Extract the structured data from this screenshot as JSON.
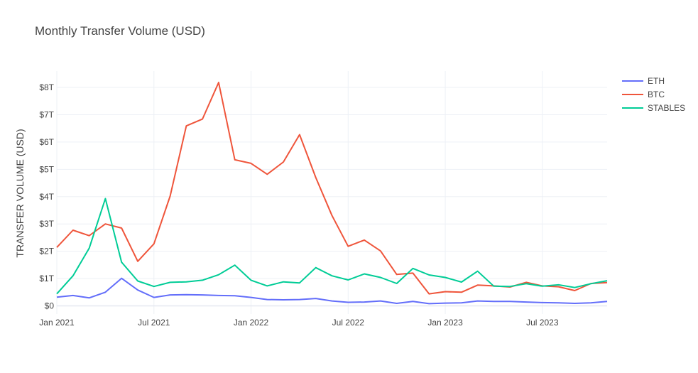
{
  "chart_data": {
    "type": "line",
    "title": "Monthly Transfer Volume (USD)",
    "xlabel": "",
    "ylabel": "TRANSFER VOLUME (USD)",
    "x": [
      "2021-01",
      "2021-02",
      "2021-03",
      "2021-04",
      "2021-05",
      "2021-06",
      "2021-07",
      "2021-08",
      "2021-09",
      "2021-10",
      "2021-11",
      "2021-12",
      "2022-01",
      "2022-02",
      "2022-03",
      "2022-04",
      "2022-05",
      "2022-06",
      "2022-07",
      "2022-08",
      "2022-09",
      "2022-10",
      "2022-11",
      "2022-12",
      "2023-01",
      "2023-02",
      "2023-03",
      "2023-04",
      "2023-05",
      "2023-06",
      "2023-07",
      "2023-08",
      "2023-09",
      "2023-10",
      "2023-11"
    ],
    "xlim": [
      "2021-01",
      "2023-11"
    ],
    "x_ticks": [
      "Jan 2021",
      "Jul 2021",
      "Jan 2022",
      "Jul 2022",
      "Jan 2023",
      "Jul 2023"
    ],
    "y_ticks": [
      "$0",
      "$1T",
      "$2T",
      "$3T",
      "$4T",
      "$5T",
      "$6T",
      "$7T",
      "$8T"
    ],
    "y_unit": "T",
    "ylim": [
      -0.3,
      8.6
    ],
    "grid": true,
    "legend_position": "top-right",
    "series": [
      {
        "name": "ETH",
        "color": "#636efa",
        "values": [
          0.32,
          0.38,
          0.29,
          0.5,
          1.01,
          0.58,
          0.31,
          0.4,
          0.41,
          0.4,
          0.38,
          0.37,
          0.31,
          0.23,
          0.22,
          0.23,
          0.27,
          0.18,
          0.13,
          0.14,
          0.18,
          0.09,
          0.16,
          0.08,
          0.1,
          0.11,
          0.18,
          0.16,
          0.16,
          0.14,
          0.12,
          0.11,
          0.09,
          0.11,
          0.16
        ]
      },
      {
        "name": "BTC",
        "color": "#ef553b",
        "values": [
          2.14,
          2.77,
          2.57,
          3.0,
          2.85,
          1.63,
          2.27,
          4.02,
          6.59,
          6.84,
          8.18,
          5.35,
          5.22,
          4.82,
          5.27,
          6.27,
          4.7,
          3.31,
          2.18,
          2.41,
          2.01,
          1.15,
          1.2,
          0.44,
          0.52,
          0.5,
          0.76,
          0.73,
          0.69,
          0.86,
          0.73,
          0.7,
          0.56,
          0.82,
          0.85
        ]
      },
      {
        "name": "STABLES",
        "color": "#00cc96",
        "values": [
          0.44,
          1.1,
          2.11,
          3.93,
          1.6,
          0.91,
          0.71,
          0.86,
          0.88,
          0.94,
          1.14,
          1.49,
          0.94,
          0.73,
          0.88,
          0.84,
          1.4,
          1.1,
          0.95,
          1.17,
          1.04,
          0.82,
          1.37,
          1.13,
          1.04,
          0.87,
          1.27,
          0.72,
          0.71,
          0.81,
          0.72,
          0.77,
          0.67,
          0.81,
          0.92
        ]
      }
    ]
  }
}
